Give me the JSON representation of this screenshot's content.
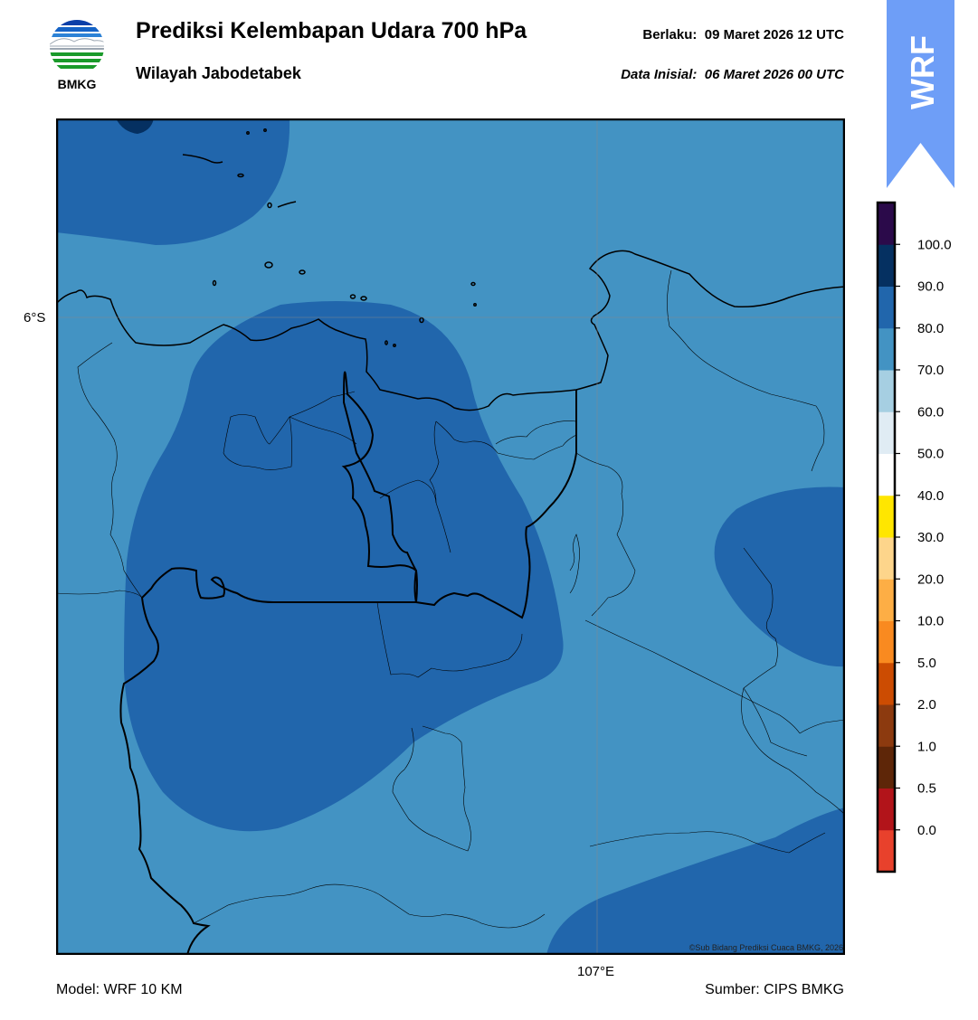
{
  "header": {
    "logo_text": "BMKG",
    "title": "Prediksi Kelembapan Udara 700 hPa",
    "subtitle": "Wilayah Jabodetabek",
    "valid_label": "Berlaku:",
    "valid_time": "09 Maret 2026 12 UTC",
    "initial_label": "Data Inisial:",
    "initial_time": "06 Maret 2026 00 UTC",
    "badge_text": "WRF"
  },
  "map": {
    "lat_label": "6°S",
    "lon_label": "107°E",
    "credit": "©Sub Bidang Prediksi Cuaca BMKG, 2026",
    "fill_colors": {
      "70-80": "#4393c3",
      "80-90": "#2166ac",
      "90-100": "#053061"
    }
  },
  "colorbar": {
    "colors_bottom_to_top": [
      "#e8412c",
      "#b2141a",
      "#5e2608",
      "#8c3a0f",
      "#cc4c02",
      "#f98a20",
      "#fdae45",
      "#fdd58b",
      "#ffe600",
      "#ffffff",
      "#e0ecf4",
      "#a6cfe2",
      "#4393c3",
      "#2166ac",
      "#053061",
      "#2b0a4a"
    ],
    "tick_labels_bottom_to_top": [
      "0.0",
      "0.5",
      "1.0",
      "2.0",
      "5.0",
      "10.0",
      "20.0",
      "30.0",
      "40.0",
      "50.0",
      "60.0",
      "70.0",
      "80.0",
      "90.0",
      "100.0"
    ]
  },
  "footer": {
    "model": "Model: WRF 10 KM",
    "source": "Sumber: CIPS BMKG"
  }
}
